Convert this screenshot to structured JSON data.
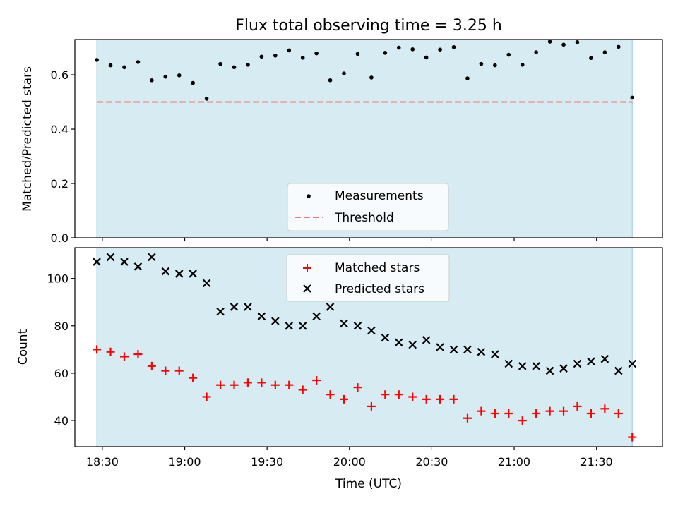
{
  "chart_data": [
    {
      "type": "scatter",
      "title": "Flux total observing time = 3.25 h",
      "xlabel": "",
      "ylabel": "Matched/Predicted stars",
      "ylim": [
        0,
        0.73
      ],
      "yticks": [
        0.0,
        0.2,
        0.4,
        0.6
      ],
      "ytick_labels": [
        "0.0",
        "0.2",
        "0.4",
        "0.6"
      ],
      "legend_position": "lower center",
      "x": [
        "18:28",
        "18:33",
        "18:38",
        "18:43",
        "18:48",
        "18:53",
        "18:58",
        "19:03",
        "19:08",
        "19:13",
        "19:18",
        "19:23",
        "19:28",
        "19:33",
        "19:38",
        "19:43",
        "19:48",
        "19:53",
        "19:58",
        "20:03",
        "20:08",
        "20:13",
        "20:18",
        "20:23",
        "20:28",
        "20:33",
        "20:38",
        "20:43",
        "20:48",
        "20:53",
        "20:58",
        "21:03",
        "21:08",
        "21:13",
        "21:18",
        "21:23",
        "21:28",
        "21:33",
        "21:38",
        "21:43"
      ],
      "series": [
        {
          "name": "Measurements",
          "color": "#000000",
          "marker": "dot",
          "values": [
            0.655,
            0.635,
            0.628,
            0.647,
            0.58,
            0.593,
            0.598,
            0.57,
            0.512,
            0.64,
            0.628,
            0.637,
            0.667,
            0.671,
            0.69,
            0.663,
            0.679,
            0.58,
            0.605,
            0.677,
            0.59,
            0.681,
            0.7,
            0.694,
            0.664,
            0.693,
            0.702,
            0.587,
            0.64,
            0.635,
            0.674,
            0.637,
            0.683,
            0.722,
            0.711,
            0.72,
            0.662,
            0.683,
            0.703,
            0.516
          ]
        },
        {
          "name": "Threshold",
          "color": "#f07b7b",
          "style": "dashed",
          "value": 0.5
        }
      ]
    },
    {
      "type": "scatter",
      "title": "",
      "xlabel": "Time (UTC)",
      "ylabel": "Count",
      "ylim": [
        29,
        113
      ],
      "yticks": [
        40,
        60,
        80,
        100
      ],
      "xticks": [
        "18:30",
        "19:00",
        "19:30",
        "20:00",
        "20:30",
        "21:00",
        "21:30"
      ],
      "xlim": [
        "18:20",
        "21:54"
      ],
      "legend_position": "upper center",
      "x": [
        "18:28",
        "18:33",
        "18:38",
        "18:43",
        "18:48",
        "18:53",
        "18:58",
        "19:03",
        "19:08",
        "19:13",
        "19:18",
        "19:23",
        "19:28",
        "19:33",
        "19:38",
        "19:43",
        "19:48",
        "19:53",
        "19:58",
        "20:03",
        "20:08",
        "20:13",
        "20:18",
        "20:23",
        "20:28",
        "20:33",
        "20:38",
        "20:43",
        "20:48",
        "20:53",
        "20:58",
        "21:03",
        "21:08",
        "21:13",
        "21:18",
        "21:23",
        "21:28",
        "21:33",
        "21:38",
        "21:43"
      ],
      "series": [
        {
          "name": "Matched stars",
          "color": "#ff0000",
          "marker": "plus",
          "values": [
            70,
            69,
            67,
            68,
            63,
            61,
            61,
            58,
            50,
            55,
            55,
            56,
            56,
            55,
            55,
            53,
            57,
            51,
            49,
            54,
            46,
            51,
            51,
            50,
            49,
            49,
            49,
            41,
            44,
            43,
            43,
            40,
            43,
            44,
            44,
            46,
            43,
            45,
            43,
            33
          ]
        },
        {
          "name": "Predicted stars",
          "color": "#000000",
          "marker": "x",
          "values": [
            107,
            109,
            107,
            105,
            109,
            103,
            102,
            102,
            98,
            86,
            88,
            88,
            84,
            82,
            80,
            80,
            84,
            88,
            81,
            80,
            78,
            75,
            73,
            72,
            74,
            71,
            70,
            70,
            69,
            68,
            64,
            63,
            63,
            61,
            62,
            64,
            65,
            66,
            61,
            64
          ]
        }
      ]
    }
  ],
  "observing_span": {
    "start": "18:28",
    "end": "21:43",
    "color": "#add8e6"
  }
}
